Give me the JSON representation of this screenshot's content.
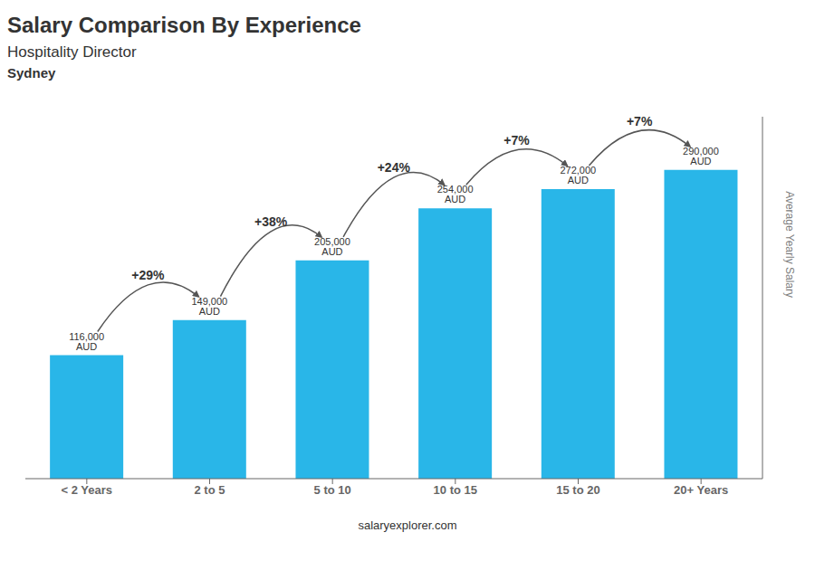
{
  "chart_data": {
    "type": "bar",
    "title": "Salary Comparison By Experience",
    "subtitle": "Hospitality Director",
    "city": "Sydney",
    "ylabel": "Average Yearly Salary",
    "footer": "salaryexplorer.com",
    "categories": [
      "< 2 Years",
      "2 to 5",
      "5 to 10",
      "10 to 15",
      "15 to 20",
      "20+ Years"
    ],
    "values": [
      116000,
      149000,
      205000,
      254000,
      272000,
      290000
    ],
    "value_labels": [
      "116,000 AUD",
      "149,000 AUD",
      "205,000 AUD",
      "254,000 AUD",
      "272,000 AUD",
      "290,000 AUD"
    ],
    "data_labels": true,
    "annotations": [
      "+29%",
      "+38%",
      "+24%",
      "+7%",
      "+7%"
    ],
    "color": "#29b6e8",
    "ylim": [
      0,
      340000
    ],
    "tick_labels": "x",
    "grid": false
  }
}
